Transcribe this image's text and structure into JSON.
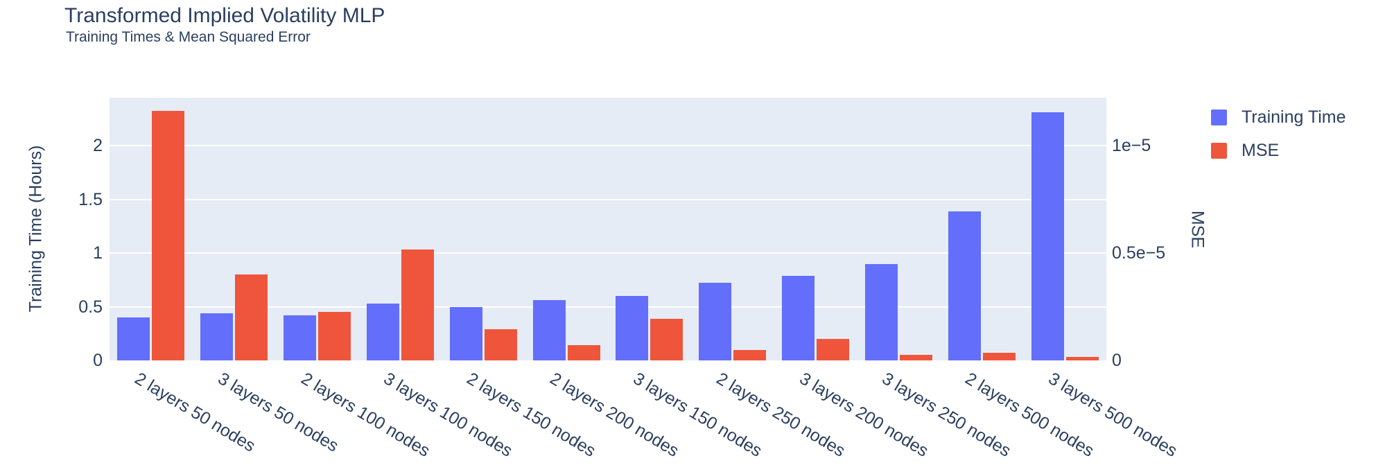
{
  "figure": {
    "title": "Transformed Implied Volatility MLP",
    "subtitle": "Training Times & Mean Squared Error"
  },
  "legend": {
    "entries": [
      {
        "label": "Training Time",
        "color": "#636EFA"
      },
      {
        "label": "MSE",
        "color": "#EF553B"
      }
    ]
  },
  "chart_data": {
    "type": "bar",
    "bar_mode": "grouped",
    "title": "Transformed Implied Volatility MLP",
    "subtitle": "Training Times & Mean Squared Error",
    "categories": [
      "2 layers 50 nodes",
      "3 layers 50 nodes",
      "2 layers 100 nodes",
      "3 layers 100 nodes",
      "2 layers 150 nodes",
      "2 layers 200 nodes",
      "3 layers 150 nodes",
      "2 layers 250 nodes",
      "3 layers 200 nodes",
      "3 layers 250 nodes",
      "2 layers 500 nodes",
      "3 layers 500 nodes"
    ],
    "series": [
      {
        "name": "Training Time",
        "yaxis": "left",
        "unit": "hours",
        "color": "#636EFA",
        "values": [
          0.4,
          0.44,
          0.42,
          0.53,
          0.5,
          0.56,
          0.6,
          0.72,
          0.79,
          0.9,
          1.39,
          2.31
        ]
      },
      {
        "name": "MSE",
        "yaxis": "right",
        "unit": "1e-5",
        "color": "#EF553B",
        "values_e5": [
          1.16,
          0.4,
          0.225,
          0.515,
          0.145,
          0.07,
          0.195,
          0.047,
          0.1,
          0.026,
          0.036,
          0.015
        ]
      }
    ],
    "left_axis": {
      "title": "Training Time (Hours)",
      "ticks": [
        0,
        0.5,
        1,
        1.5,
        2
      ],
      "tick_labels": [
        "0",
        "0.5",
        "1",
        "1.5",
        "2"
      ],
      "range": [
        0,
        2.445
      ]
    },
    "right_axis": {
      "title": "MSE",
      "ticks": [
        {
          "label": "0",
          "value_left_units": 0
        },
        {
          "label": "0.5e−5",
          "value_left_units": 1
        },
        {
          "label": "1e−5",
          "value_left_units": 2
        }
      ],
      "range_e5": [
        0,
        1.2226
      ]
    },
    "layout": {
      "grid": true,
      "legend_position": "top-right",
      "plot_bg": "#E5ECF6",
      "grid_color": "#FFFFFF",
      "text_color": "#2A3F5F",
      "x_tick_angle_deg": 31
    }
  }
}
